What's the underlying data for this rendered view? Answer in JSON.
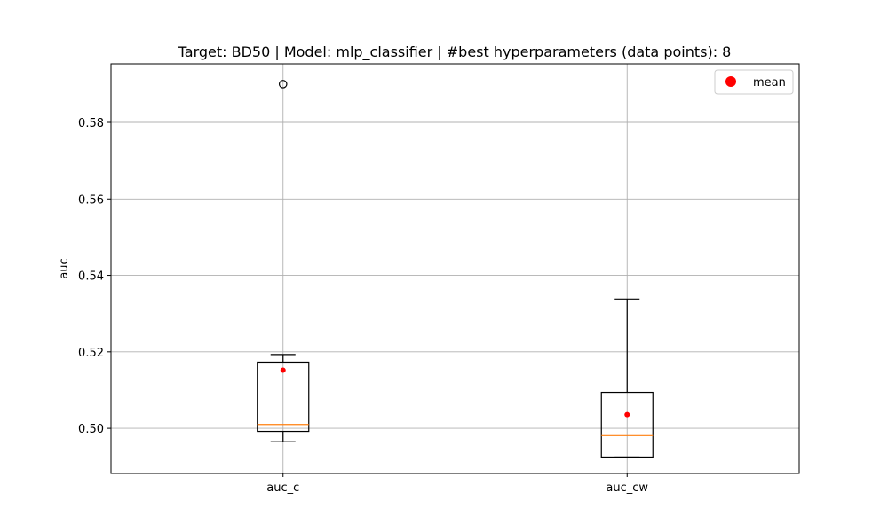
{
  "chart_data": {
    "type": "boxplot",
    "title": "Target: BD50 | Model: mlp_classifier | #best hyperparameters (data points): 8",
    "xlabel": "",
    "ylabel": "auc",
    "ylim": [
      0.4882,
      0.5953
    ],
    "yticks": [
      0.5,
      0.52,
      0.54,
      0.56,
      0.58
    ],
    "ytick_labels": [
      "0.50",
      "0.52",
      "0.54",
      "0.56",
      "0.58"
    ],
    "categories": [
      "auc_c",
      "auc_cw"
    ],
    "grid": true,
    "legend": {
      "position": "upper right",
      "entries": [
        "mean"
      ]
    },
    "boxes": [
      {
        "label": "auc_c",
        "whisker_low": 0.4965,
        "q1": 0.4992,
        "median": 0.501,
        "q3": 0.5173,
        "whisker_high": 0.5193,
        "mean": 0.5152,
        "outliers": [
          0.59
        ]
      },
      {
        "label": "auc_cw",
        "whisker_low": 0.4925,
        "q1": 0.4925,
        "median": 0.4981,
        "q3": 0.5094,
        "whisker_high": 0.5338,
        "mean": 0.5036,
        "outliers": []
      }
    ],
    "colors": {
      "box": "#000000",
      "median": "#ff7f0e",
      "mean": "#ff0000",
      "grid": "#b0b0b0"
    }
  }
}
